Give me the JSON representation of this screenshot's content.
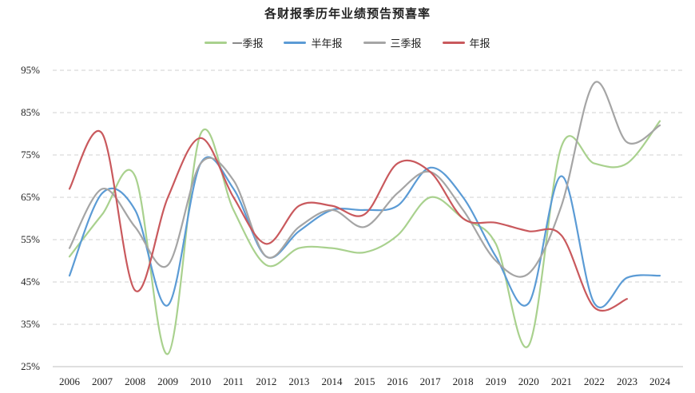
{
  "chart_data": {
    "type": "line",
    "title": "各财报季历年业绩预告预喜率",
    "x": [
      "2006",
      "2007",
      "2008",
      "2009",
      "2010",
      "2011",
      "2012",
      "2013",
      "2014",
      "2015",
      "2016",
      "2017",
      "2018",
      "2019",
      "2020",
      "2021",
      "2022",
      "2023",
      "2024"
    ],
    "y_ticks": [
      "25%",
      "35%",
      "45%",
      "55%",
      "65%",
      "75%",
      "85%",
      "95%"
    ],
    "ylim": [
      25,
      95
    ],
    "grid": "horizontal dashed",
    "legend_position": "top-center",
    "series": [
      {
        "name": "一季报",
        "color": "#a9d18e",
        "values": [
          51,
          61,
          70,
          28,
          80,
          62,
          49,
          53,
          53,
          52,
          56,
          65,
          60,
          54,
          30,
          77,
          73,
          73,
          83
        ]
      },
      {
        "name": "半年报",
        "color": "#5b9bd5",
        "values": [
          46.5,
          66,
          62,
          39.5,
          73,
          67,
          51,
          57,
          62,
          62,
          63,
          72,
          65,
          51,
          40,
          70,
          40,
          46,
          46.5
        ]
      },
      {
        "name": "三季报",
        "color": "#a5a5a5",
        "values": [
          53,
          67,
          58,
          49,
          73,
          69,
          51,
          58,
          62,
          58,
          66,
          71,
          62,
          50,
          47,
          63,
          92,
          78,
          82
        ]
      },
      {
        "name": "年报",
        "color": "#c9595d",
        "values": [
          67,
          80,
          43,
          65,
          79,
          65,
          54,
          63,
          63,
          61,
          73,
          71,
          60,
          59,
          57,
          56,
          39,
          41,
          null
        ]
      }
    ]
  }
}
